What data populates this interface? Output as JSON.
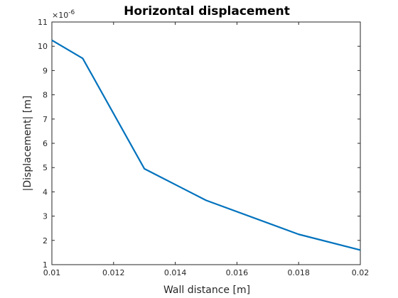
{
  "chart_data": {
    "type": "line",
    "title": "Horizontal displacement",
    "xlabel": "Wall distance [m]",
    "ylabel": "|Displacement| [m]",
    "y_exponent_label": "×10",
    "y_exponent_power": "-6",
    "xlim": [
      0.01,
      0.02
    ],
    "ylim": [
      1,
      11
    ],
    "x_ticks": [
      "0.01",
      "0.012",
      "0.014",
      "0.016",
      "0.018",
      "0.02"
    ],
    "x_tick_values": [
      0.01,
      0.012,
      0.014,
      0.016,
      0.018,
      0.02
    ],
    "y_ticks": [
      "1",
      "2",
      "3",
      "4",
      "5",
      "6",
      "7",
      "8",
      "9",
      "10",
      "11"
    ],
    "y_tick_values": [
      1,
      2,
      3,
      4,
      5,
      6,
      7,
      8,
      9,
      10,
      11
    ],
    "grid": false,
    "series": [
      {
        "color": "#0072BD",
        "x": [
          0.01,
          0.011,
          0.013,
          0.015,
          0.018,
          0.02
        ],
        "y": [
          10.25,
          9.5,
          4.95,
          3.65,
          2.25,
          1.6
        ]
      }
    ]
  }
}
